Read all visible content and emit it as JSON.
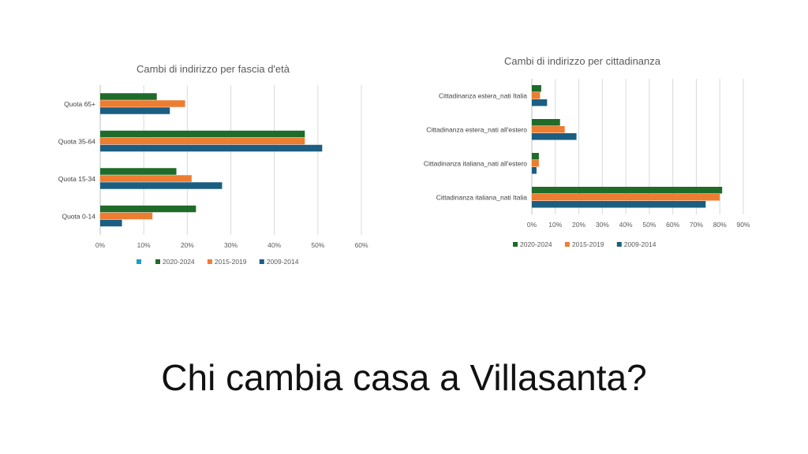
{
  "slide": {
    "title": "Chi cambia casa a Villasanta?"
  },
  "chart_data": [
    {
      "type": "bar",
      "orientation": "horizontal",
      "title": "Cambi di indirizzo per fascia d'età",
      "categories": [
        "Quota 65+",
        "Quota 35-64",
        "Quota 15-34",
        "Quota 0-14"
      ],
      "series": [
        {
          "name": "2020-2024",
          "color": "#1e6b2a",
          "values": [
            13,
            47,
            17.5,
            22
          ]
        },
        {
          "name": "2015-2019",
          "color": "#ed7d31",
          "values": [
            19.5,
            47,
            21,
            12
          ]
        },
        {
          "name": "2009-2014",
          "color": "#1b5e82",
          "values": [
            16,
            51,
            28,
            5
          ]
        }
      ],
      "legend_extra": {
        "name": "",
        "color": "#1f9ec4"
      },
      "xlim": [
        0,
        60
      ],
      "xticks": [
        0,
        10,
        20,
        30,
        40,
        50,
        60
      ],
      "tick_format": "percent",
      "grid": "vertical",
      "legend": "bottom"
    },
    {
      "type": "bar",
      "orientation": "horizontal",
      "title": "Cambi di indirizzo per cittadinanza",
      "categories": [
        "Cittadinanza estera_nati Italia",
        "Cittadinanza estera_nati all'estero",
        "Cittadinanza italiana_nati all'estero",
        "Cittadinanza italiana_nati Italia"
      ],
      "series": [
        {
          "name": "2020-2024",
          "color": "#1e6b2a",
          "values": [
            4,
            12,
            3,
            81
          ]
        },
        {
          "name": "2015-2019",
          "color": "#ed7d31",
          "values": [
            3.5,
            14,
            3,
            80
          ]
        },
        {
          "name": "2009-2014",
          "color": "#1b5e82",
          "values": [
            6.5,
            19,
            2,
            74
          ]
        }
      ],
      "xlim": [
        0,
        90
      ],
      "xticks": [
        0,
        10,
        20,
        30,
        40,
        50,
        60,
        70,
        80,
        90
      ],
      "tick_format": "percent",
      "grid": "vertical",
      "legend": "bottom"
    }
  ]
}
